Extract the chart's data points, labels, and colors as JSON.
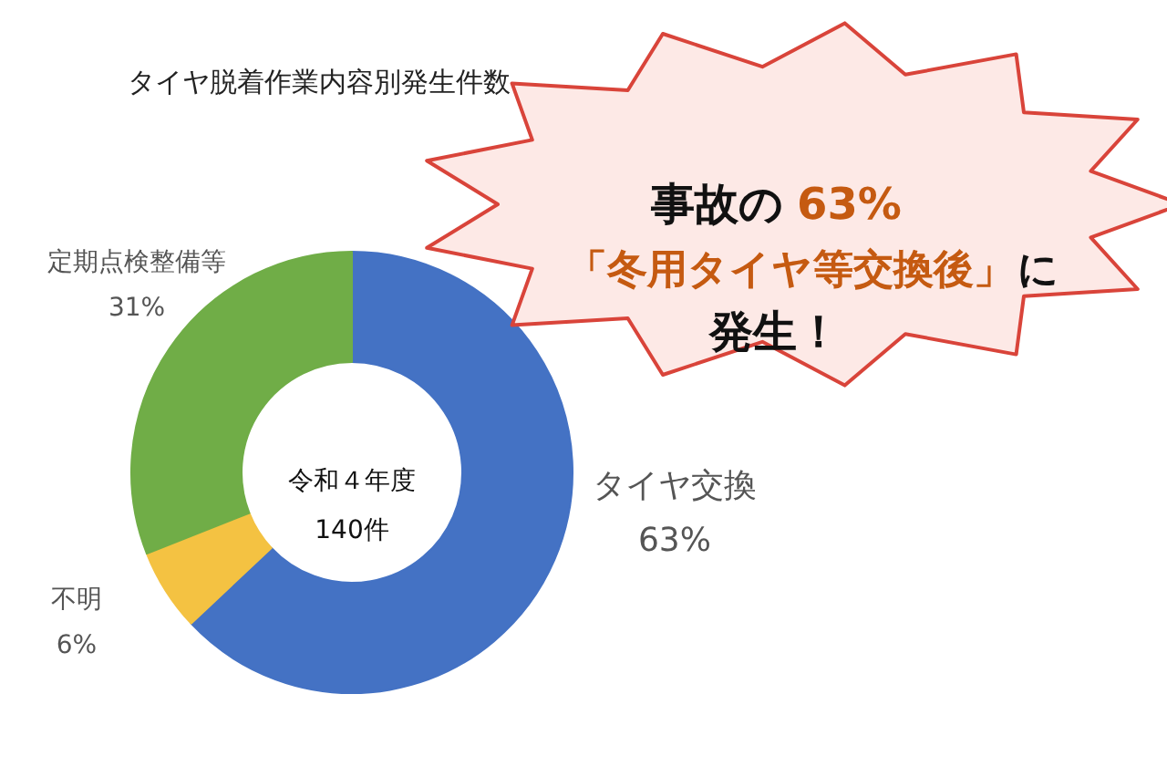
{
  "chart_data": {
    "type": "donut",
    "title": "タイヤ脱着作業内容別発生件数",
    "categories": [
      "タイヤ交換",
      "不明",
      "定期点検整備等"
    ],
    "values": [
      63,
      6,
      31
    ],
    "colors": [
      "#4472c4",
      "#f4c242",
      "#70ad47"
    ],
    "value_labels": [
      "63%",
      "6%",
      "31%"
    ],
    "annotations": [
      "令和４年度",
      "140件",
      "事故の",
      "63%",
      "「冬用タイヤ等交換後」",
      "に",
      "発生！"
    ]
  }
}
